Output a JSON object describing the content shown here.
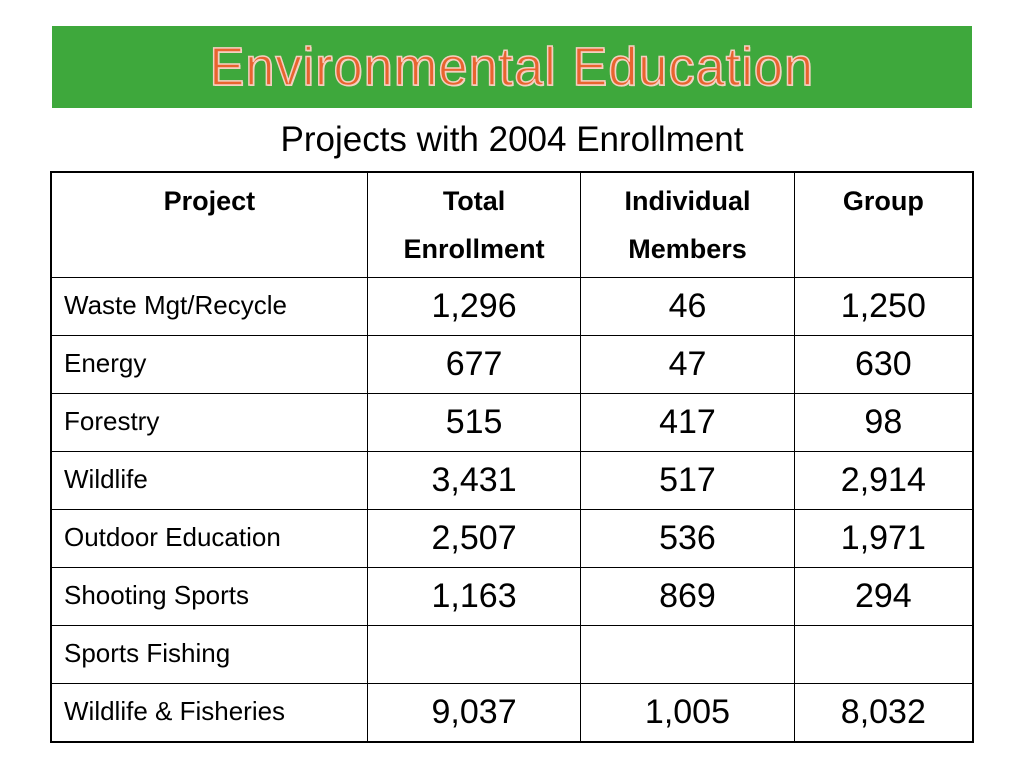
{
  "banner": {
    "title": "Environmental Education",
    "background_color": "#3ea83c",
    "title_color": "#e8642f"
  },
  "subtitle": "Projects with 2004 Enrollment",
  "table": {
    "headers": [
      [
        "Project"
      ],
      [
        "Total",
        "Enrollment"
      ],
      [
        "Individual",
        "Members"
      ],
      [
        "Group"
      ]
    ],
    "rows": [
      {
        "project": "Waste Mgt/Recycle",
        "total": "1,296",
        "individual": "46",
        "group": "1,250"
      },
      {
        "project": "Energy",
        "total": "677",
        "individual": "47",
        "group": "630"
      },
      {
        "project": "Forestry",
        "total": "515",
        "individual": "417",
        "group": "98"
      },
      {
        "project": "Wildlife",
        "total": "3,431",
        "individual": "517",
        "group": "2,914"
      },
      {
        "project": "Outdoor Education",
        "total": "2,507",
        "individual": "536",
        "group": "1,971"
      },
      {
        "project": "Shooting Sports",
        "total": "1,163",
        "individual": "869",
        "group": "294"
      },
      {
        "project": "Sports Fishing",
        "total": "",
        "individual": "",
        "group": ""
      },
      {
        "project": "Wildlife & Fisheries",
        "total": "9,037",
        "individual": "1,005",
        "group": "8,032"
      }
    ]
  }
}
